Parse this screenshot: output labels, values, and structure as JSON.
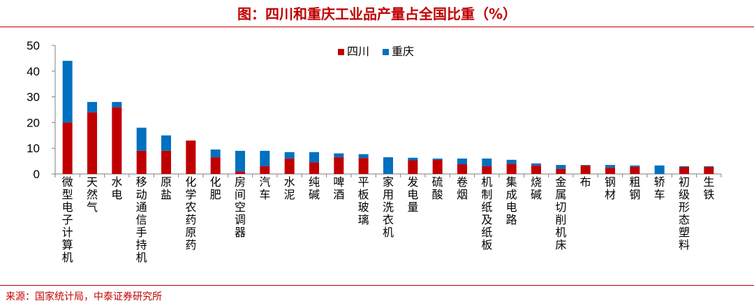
{
  "header": {
    "title": "图：四川和重庆工业品产量占全国比重（%）"
  },
  "footer": {
    "source": "来源：国家统计局，中泰证券研究所"
  },
  "colors": {
    "sichuan": "#c00000",
    "chongqing": "#0070c0",
    "accent": "#c00000",
    "axis": "#7f7f7f"
  },
  "chart_data": {
    "type": "bar",
    "stacked": true,
    "title": "图：四川和重庆工业品产量占全国比重（%）",
    "xlabel": "",
    "ylabel": "",
    "ylim": [
      0,
      50
    ],
    "yticks": [
      0,
      10,
      20,
      30,
      40,
      50
    ],
    "grid": false,
    "legend_position": "top-center",
    "categories": [
      "微型电子计算机",
      "天然气",
      "水电",
      "移动通信手持机",
      "原盐",
      "化学农药原药",
      "化肥",
      "房间空调器",
      "汽车",
      "水泥",
      "纯碱",
      "啤酒",
      "平板玻璃",
      "家用洗衣机",
      "发电量",
      "硫酸",
      "卷烟",
      "机制纸及纸板",
      "集成电路",
      "烧碱",
      "金属切削机床",
      "布",
      "钢材",
      "粗钢",
      "轿车",
      "初级形态塑料",
      "生铁"
    ],
    "series": [
      {
        "name": "四川",
        "values": [
          20,
          24,
          26,
          9,
          9,
          13,
          6.5,
          1,
          3,
          6,
          4.5,
          6.5,
          6.2,
          0,
          5.3,
          5.5,
          3.8,
          3,
          4,
          3.3,
          2,
          3.3,
          2.5,
          2.8,
          0,
          2.7,
          2.7
        ]
      },
      {
        "name": "重庆",
        "values": [
          24,
          4,
          2,
          9,
          6,
          0,
          3,
          8,
          6,
          2.5,
          4,
          1.5,
          1.5,
          6.5,
          1,
          0.5,
          2.2,
          3,
          1.5,
          0.8,
          1.5,
          0.2,
          1,
          0.5,
          3.3,
          0.3,
          0.3
        ]
      }
    ]
  }
}
